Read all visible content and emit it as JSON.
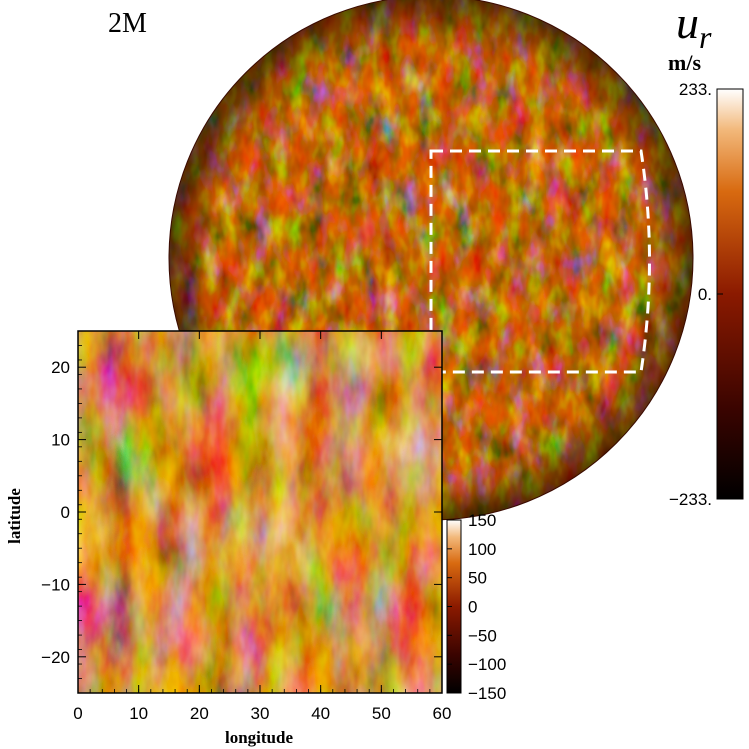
{
  "title": "2M",
  "variable": {
    "symbol": "u",
    "subscript": "r",
    "unit": "m/s"
  },
  "colors": {
    "low": "#000000",
    "mid": "#8b1a00",
    "orange": "#d86a10",
    "high": "#ffffff"
  },
  "chart_data": [
    {
      "type": "heatmap",
      "title": "2M",
      "view": "orthographic-sphere",
      "colorbar": {
        "label": "u_r",
        "unit": "m/s",
        "min": -233,
        "max": 233,
        "ticks": [
          "233.",
          "0.",
          "-233."
        ]
      },
      "selection_box": "dashed white rectangle marking the zoomed region"
    },
    {
      "type": "heatmap",
      "xlabel": "longitude",
      "ylabel": "latitude",
      "xlim": [
        0,
        60
      ],
      "ylim": [
        -25,
        25
      ],
      "xticks": [
        "0",
        "10",
        "20",
        "30",
        "40",
        "50",
        "60"
      ],
      "yticks": [
        "20",
        "10",
        "0",
        "-10",
        "-20"
      ],
      "colorbar": {
        "min": -150,
        "max": 150,
        "ticks": [
          "150",
          "100",
          "50",
          "0",
          "-50",
          "-100",
          "-150"
        ]
      }
    }
  ]
}
